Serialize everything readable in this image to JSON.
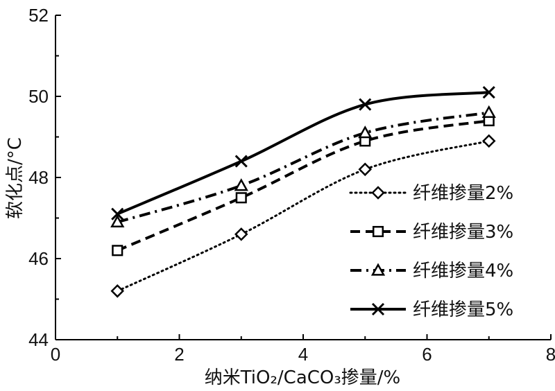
{
  "chart_data": {
    "type": "line",
    "xlabel": "纳米TiO₂/CaCO₃掺量/%",
    "ylabel": "软化点/°C",
    "xlim": [
      0,
      8
    ],
    "ylim": [
      44,
      52
    ],
    "xticks": [
      0,
      2,
      4,
      6,
      8
    ],
    "yticks": [
      44,
      46,
      48,
      50,
      52
    ],
    "grid": false,
    "legend_position": "right",
    "x": [
      1,
      3,
      5,
      7
    ],
    "series": [
      {
        "name": "纤维掺量2%",
        "values": [
          45.2,
          46.6,
          48.2,
          48.9
        ],
        "style": "dotted",
        "marker": "diamond"
      },
      {
        "name": "纤维掺量3%",
        "values": [
          46.2,
          47.5,
          48.9,
          49.4
        ],
        "style": "dashed",
        "marker": "square"
      },
      {
        "name": "纤维掺量4%",
        "values": [
          46.9,
          47.8,
          49.1,
          49.6
        ],
        "style": "dash-dot",
        "marker": "triangle"
      },
      {
        "name": "纤维掺量5%",
        "values": [
          47.1,
          48.4,
          49.8,
          50.1
        ],
        "style": "solid",
        "marker": "x"
      }
    ],
    "line_color": "#000000"
  }
}
